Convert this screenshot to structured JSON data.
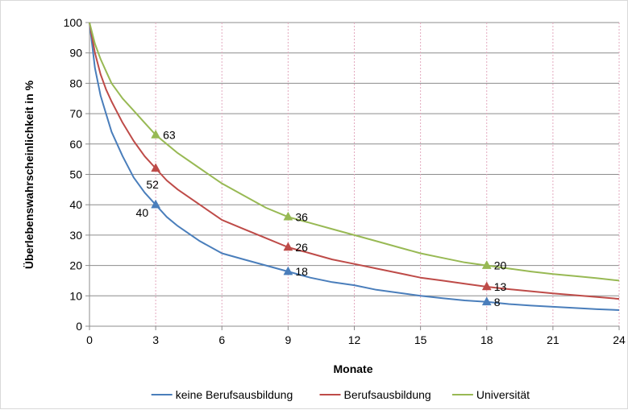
{
  "chart_data": {
    "type": "line",
    "title": "",
    "xlabel": "Monate",
    "ylabel": "Überlebenswahrscheinlichkeit in %",
    "xlim": [
      0,
      24
    ],
    "ylim": [
      0,
      100
    ],
    "x_ticks": [
      0,
      3,
      6,
      9,
      12,
      15,
      18,
      21,
      24
    ],
    "y_ticks": [
      0,
      10,
      20,
      30,
      40,
      50,
      60,
      70,
      80,
      90,
      100
    ],
    "grid": "horizontal solid, vertical dotted",
    "legend_position": "bottom",
    "series": [
      {
        "name": "keine Berufsausbildung",
        "color": "#4a7ebb",
        "x": [
          0,
          0.25,
          0.5,
          0.75,
          1,
          1.5,
          2,
          2.5,
          3,
          3.5,
          4,
          5,
          6,
          7,
          8,
          9,
          10,
          11,
          12,
          13,
          14,
          15,
          16,
          17,
          18,
          19,
          20,
          21,
          22,
          23,
          24
        ],
        "y": [
          100,
          85,
          76,
          70,
          64,
          56,
          49,
          44,
          40,
          36,
          33,
          28,
          24,
          22,
          20,
          18,
          16,
          14.5,
          13.5,
          12,
          11,
          10,
          9.2,
          8.5,
          8,
          7.3,
          6.8,
          6.4,
          6,
          5.6,
          5.3
        ]
      },
      {
        "name": "Berufsausbildung",
        "color": "#be4b48",
        "x": [
          0,
          0.25,
          0.5,
          0.75,
          1,
          1.5,
          2,
          2.5,
          3,
          3.5,
          4,
          5,
          6,
          7,
          8,
          9,
          10,
          11,
          12,
          13,
          14,
          15,
          16,
          17,
          18,
          19,
          20,
          21,
          22,
          23,
          24
        ],
        "y": [
          100,
          90,
          83,
          78,
          74,
          67,
          61,
          56,
          52,
          48,
          45,
          40,
          35,
          32,
          29,
          26,
          24,
          22,
          20.5,
          19,
          17.5,
          16,
          15,
          14,
          13,
          12.2,
          11.5,
          10.8,
          10.2,
          9.6,
          9
        ]
      },
      {
        "name": "Universität",
        "color": "#98b954",
        "x": [
          0,
          0.25,
          0.5,
          0.75,
          1,
          1.5,
          2,
          2.5,
          3,
          3.5,
          4,
          5,
          6,
          7,
          8,
          9,
          10,
          11,
          12,
          13,
          14,
          15,
          16,
          17,
          18,
          19,
          20,
          21,
          22,
          23,
          24
        ],
        "y": [
          100,
          93,
          88,
          84,
          80,
          75,
          71,
          67,
          63,
          60,
          57,
          52,
          47,
          43,
          39,
          36,
          34,
          32,
          30,
          28,
          26,
          24,
          22.5,
          21,
          20,
          19,
          18,
          17.2,
          16.5,
          15.8,
          15
        ]
      }
    ],
    "markers": [
      {
        "series": "keine Berufsausbildung",
        "x": 3,
        "y": 40,
        "label": "40",
        "label_side": "left"
      },
      {
        "series": "keine Berufsausbildung",
        "x": 9,
        "y": 18,
        "label": "18",
        "label_side": "right"
      },
      {
        "series": "keine Berufsausbildung",
        "x": 18,
        "y": 8,
        "label": "8",
        "label_side": "right"
      },
      {
        "series": "Berufsausbildung",
        "x": 3,
        "y": 52,
        "label": "52",
        "label_side": "below"
      },
      {
        "series": "Berufsausbildung",
        "x": 9,
        "y": 26,
        "label": "26",
        "label_side": "right"
      },
      {
        "series": "Berufsausbildung",
        "x": 18,
        "y": 13,
        "label": "13",
        "label_side": "right"
      },
      {
        "series": "Universität",
        "x": 3,
        "y": 63,
        "label": "63",
        "label_side": "right"
      },
      {
        "series": "Universität",
        "x": 9,
        "y": 36,
        "label": "36",
        "label_side": "right"
      },
      {
        "series": "Universität",
        "x": 18,
        "y": 20,
        "label": "20",
        "label_side": "right"
      }
    ]
  }
}
